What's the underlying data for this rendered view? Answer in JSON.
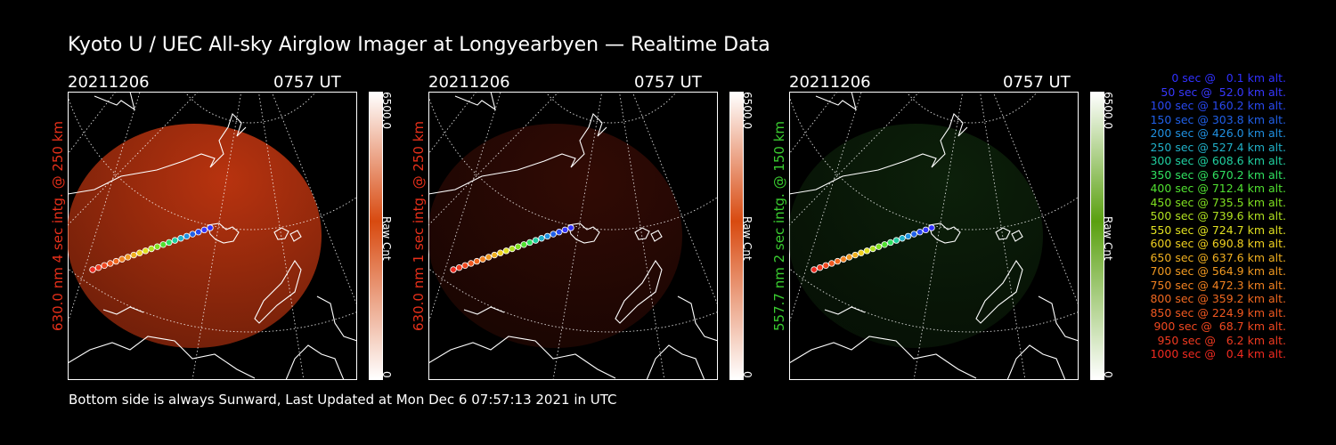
{
  "title": "Kyoto U / UEC All-sky Airglow Imager at Longyearbyen — Realtime Data",
  "footer": "Bottom side is always Sunward, Last Updated at Mon Dec  6 07:57:13 2021 in UTC",
  "panels": [
    {
      "date": "20211206",
      "time": "0757 UT",
      "label": "630.0 nm 4 sec intg. @ 250 km",
      "label_color": "#e8301a",
      "cbar_max": "6500.0",
      "cbar_unit": "Raw Cnt",
      "cbar_min": "0",
      "cbar_color": "#d84a10",
      "fill_color": "#b8330f",
      "fill_level": 0.85
    },
    {
      "date": "20211206",
      "time": "0757 UT",
      "label": "630.0 nm 1 sec intg. @ 250 km",
      "label_color": "#e8301a",
      "cbar_max": "6500.0",
      "cbar_unit": "Raw Cnt",
      "cbar_min": "0",
      "cbar_color": "#d84a10",
      "fill_color": "#5a1308",
      "fill_level": 0.4
    },
    {
      "date": "20211206",
      "time": "0757 UT",
      "label": "557.7 nm 2 sec intg. @ 150 km",
      "label_color": "#3acc30",
      "cbar_max": "6500.0",
      "cbar_unit": "Raw Cnt",
      "cbar_min": "0",
      "cbar_color": "#5aa010",
      "fill_color": "#163a12",
      "fill_level": 0.4
    }
  ],
  "legend": [
    {
      "text": "0 sec @   0.1 km alt.",
      "color": "#3030ff"
    },
    {
      "text": "50 sec @  52.0 km alt.",
      "color": "#3838ff"
    },
    {
      "text": "100 sec @ 160.2 km alt.",
      "color": "#2848f0"
    },
    {
      "text": "150 sec @ 303.8 km alt.",
      "color": "#2060e8"
    },
    {
      "text": "200 sec @ 426.0 km alt.",
      "color": "#2090e0"
    },
    {
      "text": "250 sec @ 527.4 km alt.",
      "color": "#20b0c8"
    },
    {
      "text": "300 sec @ 608.6 km alt.",
      "color": "#20d0a0"
    },
    {
      "text": "350 sec @ 670.2 km alt.",
      "color": "#30e060"
    },
    {
      "text": "400 sec @ 712.4 km alt.",
      "color": "#50e030"
    },
    {
      "text": "450 sec @ 735.5 km alt.",
      "color": "#80e020"
    },
    {
      "text": "500 sec @ 739.6 km alt.",
      "color": "#b0e020"
    },
    {
      "text": "550 sec @ 724.7 km alt.",
      "color": "#e0e020"
    },
    {
      "text": "600 sec @ 690.8 km alt.",
      "color": "#f0d020"
    },
    {
      "text": "650 sec @ 637.6 km alt.",
      "color": "#f0b020"
    },
    {
      "text": "700 sec @ 564.9 km alt.",
      "color": "#f09820"
    },
    {
      "text": "750 sec @ 472.3 km alt.",
      "color": "#f08020"
    },
    {
      "text": "800 sec @ 359.2 km alt.",
      "color": "#f06820"
    },
    {
      "text": "850 sec @ 224.9 km alt.",
      "color": "#f05820"
    },
    {
      "text": "900 sec @  68.7 km alt.",
      "color": "#f04820"
    },
    {
      "text": "950 sec @   6.2 km alt.",
      "color": "#f03a20"
    },
    {
      "text": "1000 sec @   0.4 km alt.",
      "color": "#f02a20"
    }
  ]
}
